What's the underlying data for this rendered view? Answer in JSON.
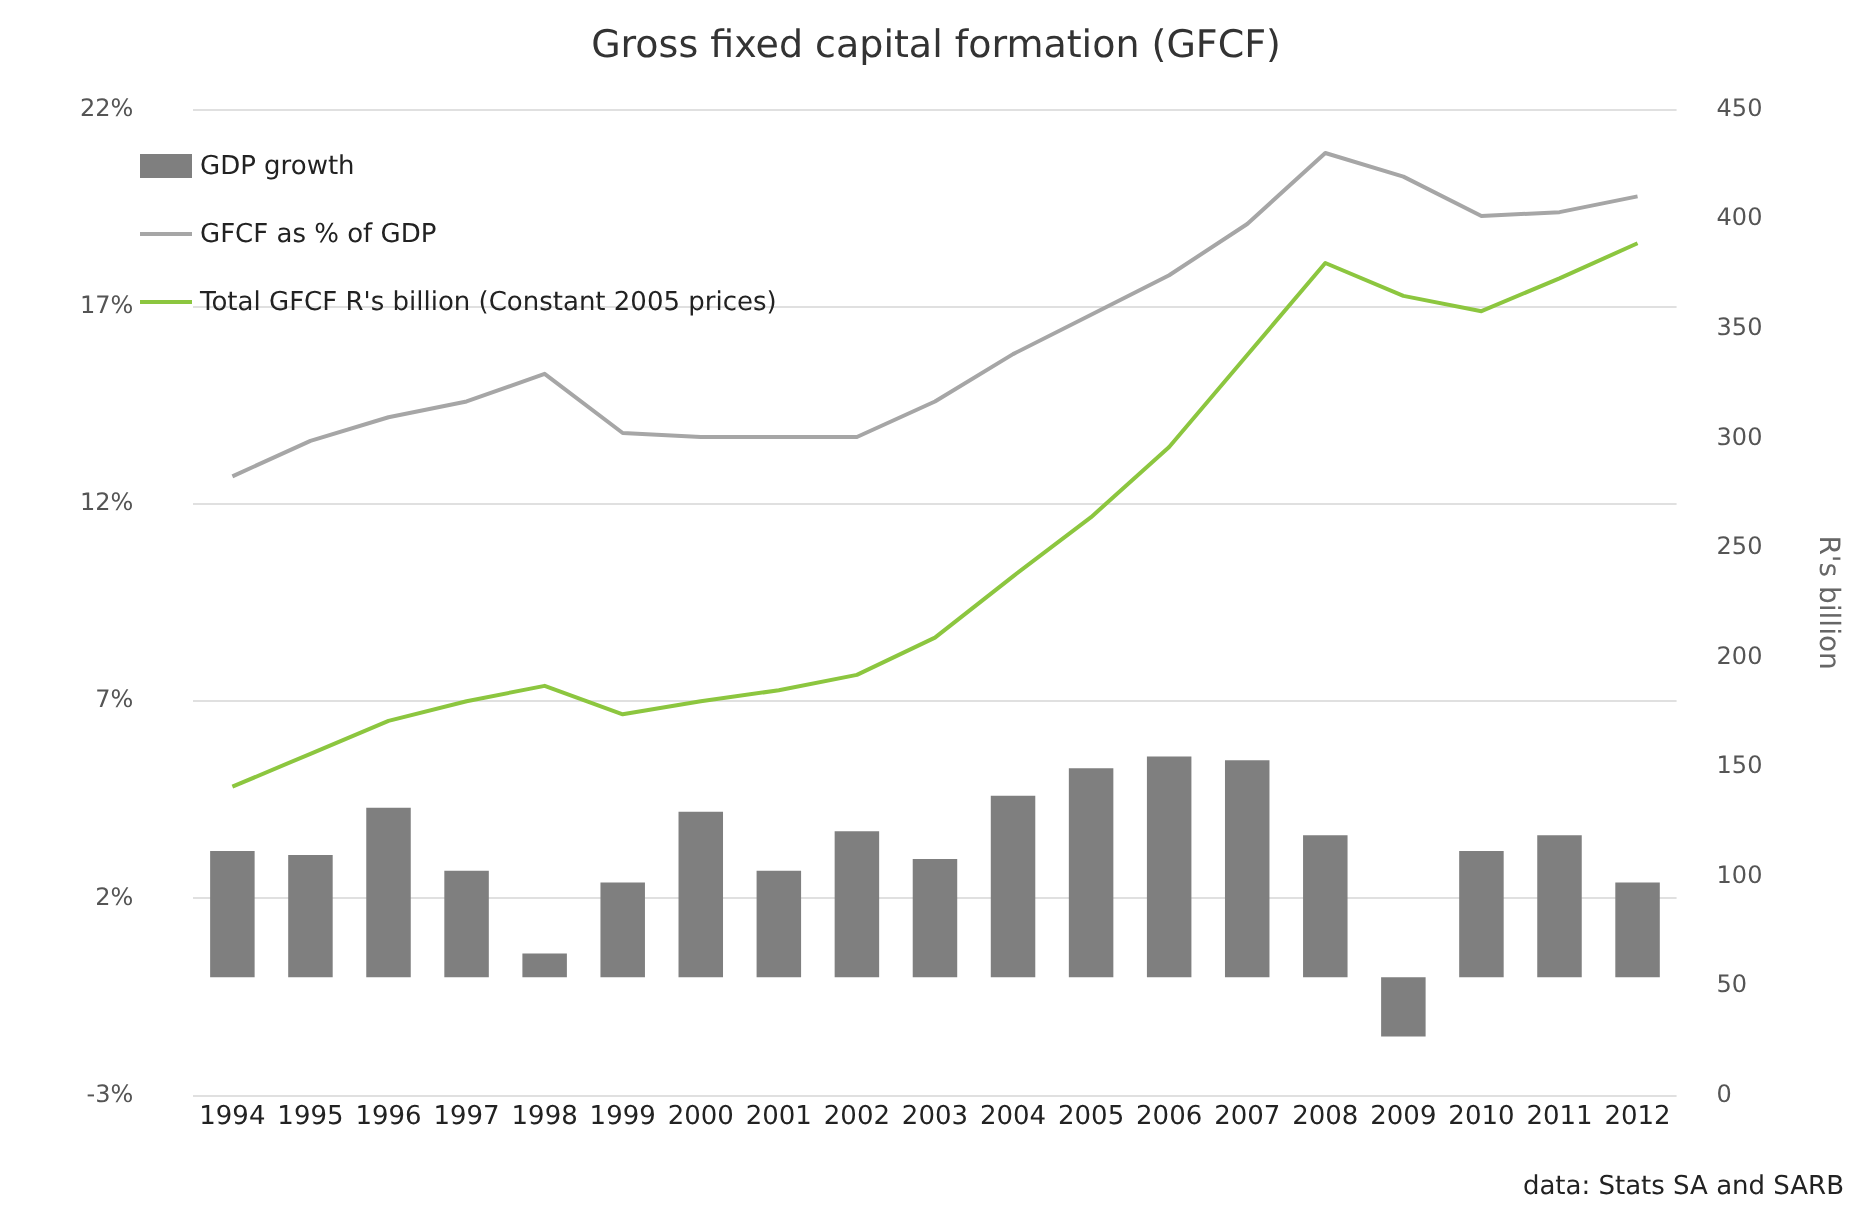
{
  "chart_data": {
    "type": "bar",
    "title": "Gross fixed capital formation (GFCF)",
    "y2label": "R's billion",
    "categories": [
      "1994",
      "1995",
      "1996",
      "1997",
      "1998",
      "1999",
      "2000",
      "2001",
      "2002",
      "2003",
      "2004",
      "2005",
      "2006",
      "2007",
      "2008",
      "2009",
      "2010",
      "2011",
      "2012"
    ],
    "series": [
      {
        "name": "GDP growth",
        "color": "#7f7f7f",
        "values": [
          3.2,
          3.1,
          4.3,
          2.7,
          0.6,
          2.4,
          4.2,
          2.7,
          3.7,
          3.0,
          4.6,
          5.3,
          5.6,
          5.5,
          3.6,
          -1.5,
          3.2,
          3.6,
          2.4
        ]
      },
      {
        "name": "GFCF as % of GDP",
        "type": "line",
        "color": "#a6a6a6",
        "values": [
          12.7,
          13.6,
          14.2,
          14.6,
          15.3,
          13.8,
          13.7,
          13.7,
          13.7,
          14.6,
          15.8,
          16.8,
          17.8,
          19.1,
          20.9,
          20.3,
          19.3,
          19.4,
          19.8
        ]
      },
      {
        "name": "Total GFCF R's billion (Constant 2005 prices)",
        "type": "line",
        "axis": "y2",
        "color": "#8cc63f",
        "values": [
          141,
          156,
          171,
          180,
          187,
          174,
          180,
          185,
          192,
          209,
          237,
          264,
          296,
          338,
          380,
          365,
          358,
          373,
          389
        ]
      }
    ],
    "ylim": [
      -3,
      22
    ],
    "yticks": [
      {
        "value": -3,
        "label": "-3%"
      },
      {
        "value": 2,
        "label": "2%"
      },
      {
        "value": 7,
        "label": "7%"
      },
      {
        "value": 12,
        "label": "12%"
      },
      {
        "value": 17,
        "label": "17%"
      },
      {
        "value": 22,
        "label": "22%"
      }
    ],
    "y2lim": [
      0,
      450
    ],
    "y2ticks": [
      0,
      50,
      100,
      150,
      200,
      250,
      300,
      350,
      400,
      450
    ],
    "grid": "y",
    "legend": "top left",
    "marker": "none",
    "line_style": "solid",
    "annotations": [
      "data: Stats SA and SARB"
    ]
  }
}
